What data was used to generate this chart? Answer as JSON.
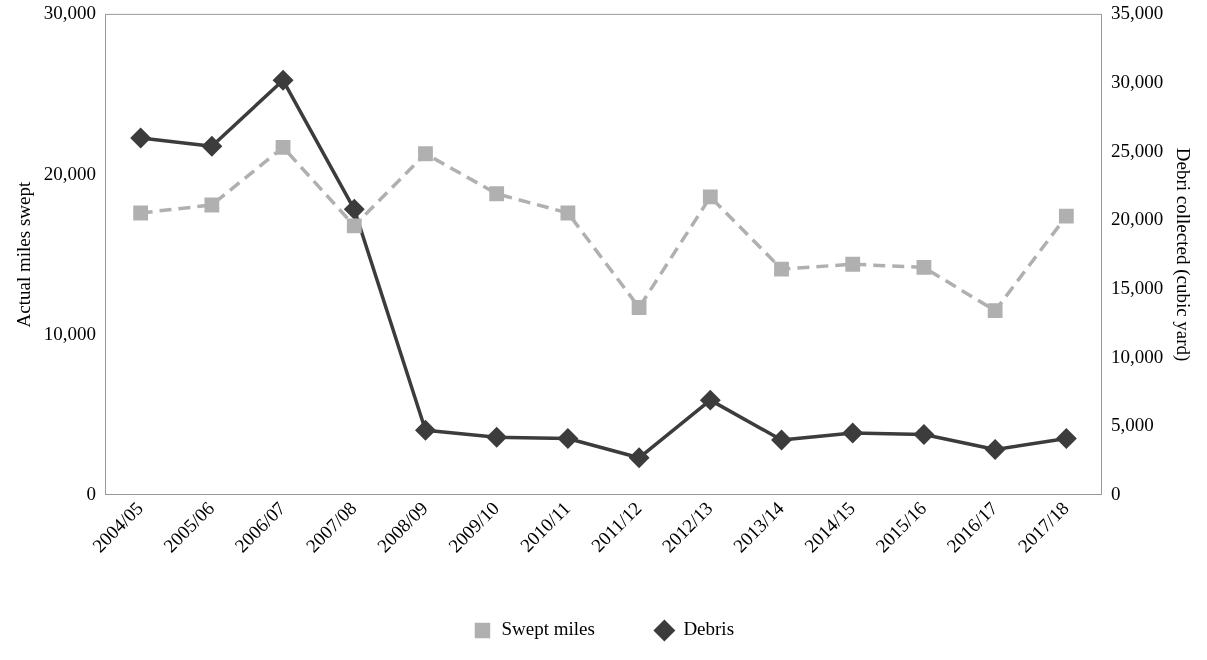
{
  "chart_data": {
    "type": "line",
    "categories": [
      "2004/05",
      "2005/06",
      "2006/07",
      "2007/08",
      "2008/09",
      "2009/10",
      "2010/11",
      "2011/12",
      "2012/13",
      "2013/14",
      "2014/15",
      "2015/16",
      "2016/17",
      "2017/18"
    ],
    "ylabel": "Actual miles swept",
    "y2label": "Debri collected (cubic yard)",
    "ylim": [
      0,
      30000
    ],
    "yticks": [
      0,
      {
        "value": 10000,
        "label": "10,000"
      },
      {
        "value": 20000,
        "label": "20,000"
      },
      {
        "value": 30000,
        "label": "30,000"
      }
    ],
    "y2lim": [
      0,
      35000
    ],
    "y2ticks": [
      0,
      {
        "value": 5000,
        "label": "5,000"
      },
      {
        "value": 10000,
        "label": "10,000"
      },
      {
        "value": 15000,
        "label": "15,000"
      },
      {
        "value": 20000,
        "label": "20,000"
      },
      {
        "value": 25000,
        "label": "25,000"
      },
      {
        "value": 30000,
        "label": "30,000"
      },
      {
        "value": 35000,
        "label": "35,000"
      }
    ],
    "series": [
      {
        "name": "Swept miles",
        "color": "#b0b0b0",
        "marker": "square",
        "line_style": "dashed",
        "values": [
          17600,
          18100,
          21700,
          16800,
          21300,
          18800,
          17600,
          11700,
          18600,
          14100,
          14400,
          14200,
          11500,
          17400
        ]
      },
      {
        "name": "Debris",
        "color": "#3c3c3c",
        "marker": "diamond",
        "line_style": "solid",
        "axis": "y2",
        "values": [
          26000,
          25400,
          30200,
          20800,
          4700,
          4200,
          4100,
          2700,
          6900,
          4000,
          4500,
          4400,
          3300,
          4100
        ]
      }
    ],
    "grid": false,
    "legend": "bottom"
  }
}
